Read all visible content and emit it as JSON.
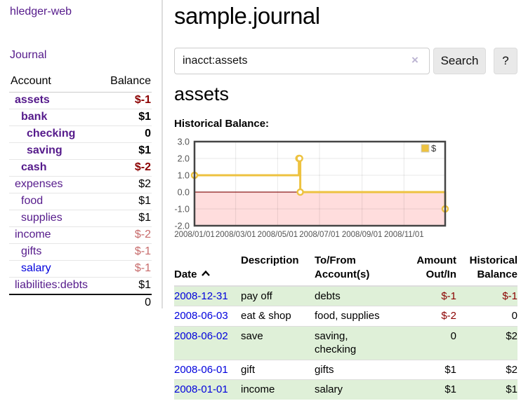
{
  "app": {
    "title": "hledger-web"
  },
  "colors": {
    "link_visited_purple": "#551a8b",
    "link_blue": "#0000dd",
    "negative_strong": "#8b0000",
    "negative_soft": "#c76b6b",
    "row_green": "#dff0d8",
    "chart_series_gold": "#edc240",
    "chart_negative_region": "#ffdddd",
    "chart_zero_line": "#8b1a1a",
    "chart_frame": "#454545"
  },
  "sidebar": {
    "journal_link": "Journal",
    "accounts_table": {
      "headers": {
        "account": "Account",
        "balance": "Balance"
      },
      "rows": [
        {
          "name": "assets",
          "indent": 1,
          "bold": true,
          "link_color": "purple",
          "balance": "$-1",
          "balance_class": "neg-strong"
        },
        {
          "name": "bank",
          "indent": 2,
          "bold": true,
          "link_color": "purple",
          "balance": "$1",
          "balance_class": ""
        },
        {
          "name": "checking",
          "indent": 3,
          "bold": true,
          "link_color": "purple",
          "balance": "0",
          "balance_class": ""
        },
        {
          "name": "saving",
          "indent": 3,
          "bold": true,
          "link_color": "purple",
          "balance": "$1",
          "balance_class": ""
        },
        {
          "name": "cash",
          "indent": 2,
          "bold": true,
          "link_color": "purple",
          "balance": "$-2",
          "balance_class": "neg-strong"
        },
        {
          "name": "expenses",
          "indent": 1,
          "bold": false,
          "link_color": "purple",
          "balance": "$2",
          "balance_class": ""
        },
        {
          "name": "food",
          "indent": 2,
          "bold": false,
          "link_color": "purple",
          "balance": "$1",
          "balance_class": ""
        },
        {
          "name": "supplies",
          "indent": 2,
          "bold": false,
          "link_color": "purple",
          "balance": "$1",
          "balance_class": ""
        },
        {
          "name": "income",
          "indent": 1,
          "bold": false,
          "link_color": "purple",
          "balance": "$-2",
          "balance_class": "neg-soft"
        },
        {
          "name": "gifts",
          "indent": 2,
          "bold": false,
          "link_color": "purple",
          "balance": "$-1",
          "balance_class": "neg-soft"
        },
        {
          "name": "salary",
          "indent": 2,
          "bold": false,
          "link_color": "blue",
          "balance": "$-1",
          "balance_class": "neg-soft"
        },
        {
          "name": "liabilities:debts",
          "indent": 1,
          "bold": false,
          "link_color": "purple",
          "balance": "$1",
          "balance_class": ""
        }
      ],
      "total": "0"
    }
  },
  "main": {
    "page_title": "sample.journal",
    "search": {
      "value": "inacct:assets",
      "clear_icon": "×",
      "button_label": "Search",
      "help_label": "?"
    },
    "account_heading": "assets",
    "chart_heading": "Historical Balance:",
    "register_table": {
      "headers": {
        "date": "Date",
        "description": "Description",
        "accounts": "To/From\nAccount(s)",
        "amount": "Amount\nOut/In",
        "balance": "Historical\nBalance"
      },
      "rows": [
        {
          "date": "2008-12-31",
          "description": "pay off",
          "accounts": "debts",
          "amount": "$-1",
          "amount_neg": true,
          "balance": "$-1",
          "balance_neg": true,
          "green": true
        },
        {
          "date": "2008-06-03",
          "description": "eat & shop",
          "accounts": "food, supplies",
          "amount": "$-2",
          "amount_neg": true,
          "balance": "0",
          "balance_neg": false,
          "green": false
        },
        {
          "date": "2008-06-02",
          "description": "save",
          "accounts": "saving,\nchecking",
          "amount": "0",
          "amount_neg": false,
          "balance": "$2",
          "balance_neg": false,
          "green": true
        },
        {
          "date": "2008-06-01",
          "description": "gift",
          "accounts": "gifts",
          "amount": "$1",
          "amount_neg": false,
          "balance": "$2",
          "balance_neg": false,
          "green": false
        },
        {
          "date": "2008-01-01",
          "description": "income",
          "accounts": "salary",
          "amount": "$1",
          "amount_neg": false,
          "balance": "$1",
          "balance_neg": false,
          "green": true
        }
      ]
    }
  },
  "chart_data": {
    "type": "line",
    "step": true,
    "title": "Historical Balance:",
    "legend": "$",
    "legend_position": "top-right",
    "x_range": [
      "2008/01/01",
      "2008/12/31"
    ],
    "xticks": [
      "2008/01/01",
      "2008/03/01",
      "2008/05/01",
      "2008/07/01",
      "2008/09/01",
      "2008/11/01"
    ],
    "yticks": [
      3.0,
      2.0,
      1.0,
      0.0,
      -1.0,
      -2.0
    ],
    "ylim": [
      -2,
      3
    ],
    "grid": true,
    "series": [
      {
        "name": "$",
        "color": "#edc240",
        "points": [
          [
            "2008-01-01",
            1
          ],
          [
            "2008-06-01",
            2
          ],
          [
            "2008-06-02",
            2
          ],
          [
            "2008-06-03",
            0
          ],
          [
            "2008-12-31",
            -1
          ]
        ]
      }
    ],
    "negative_region_color": "#ffdddd",
    "zero_line_color": "#8b1a1a"
  }
}
